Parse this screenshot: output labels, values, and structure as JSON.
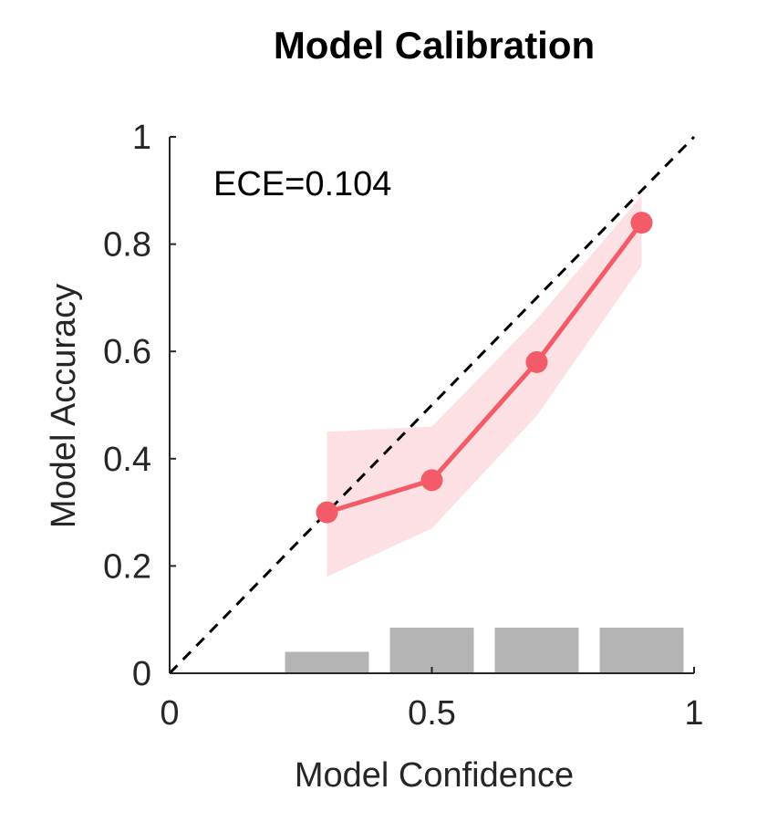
{
  "chart_data": {
    "type": "line",
    "title": "Model Calibration",
    "xlabel": "Model Confidence",
    "ylabel": "Model Accuracy",
    "xlim": [
      0,
      1
    ],
    "ylim": [
      0,
      1
    ],
    "xticks": [
      0,
      0.5,
      1
    ],
    "xtick_labels": [
      "0",
      "0.5",
      "1"
    ],
    "yticks": [
      0,
      0.2,
      0.4,
      0.6,
      0.8,
      1
    ],
    "ytick_labels": [
      "0",
      "0.2",
      "0.4",
      "0.6",
      "0.8",
      "1"
    ],
    "annotation": "ECE=0.104",
    "grid": false,
    "diagonal": {
      "name": "perfect calibration",
      "x": [
        0,
        1
      ],
      "y": [
        0,
        1
      ],
      "color": "#000000",
      "style": "dashed"
    },
    "series": [
      {
        "name": "accuracy",
        "x": [
          0.3,
          0.5,
          0.7,
          0.9
        ],
        "y": [
          0.3,
          0.36,
          0.58,
          0.84
        ],
        "color": "#f45b69",
        "band": {
          "x": [
            0.3,
            0.5,
            0.7,
            0.9
          ],
          "lower": [
            0.18,
            0.27,
            0.48,
            0.76
          ],
          "upper": [
            0.45,
            0.46,
            0.66,
            0.89
          ],
          "color": "#fde0e3"
        }
      }
    ],
    "histogram": {
      "name": "bin proportion",
      "color": "#b4b4b4",
      "bins": [
        {
          "x0": 0.22,
          "x1": 0.38,
          "height": 0.04
        },
        {
          "x0": 0.42,
          "x1": 0.58,
          "height": 0.085
        },
        {
          "x0": 0.62,
          "x1": 0.78,
          "height": 0.085
        },
        {
          "x0": 0.82,
          "x1": 0.98,
          "height": 0.085
        }
      ]
    }
  }
}
